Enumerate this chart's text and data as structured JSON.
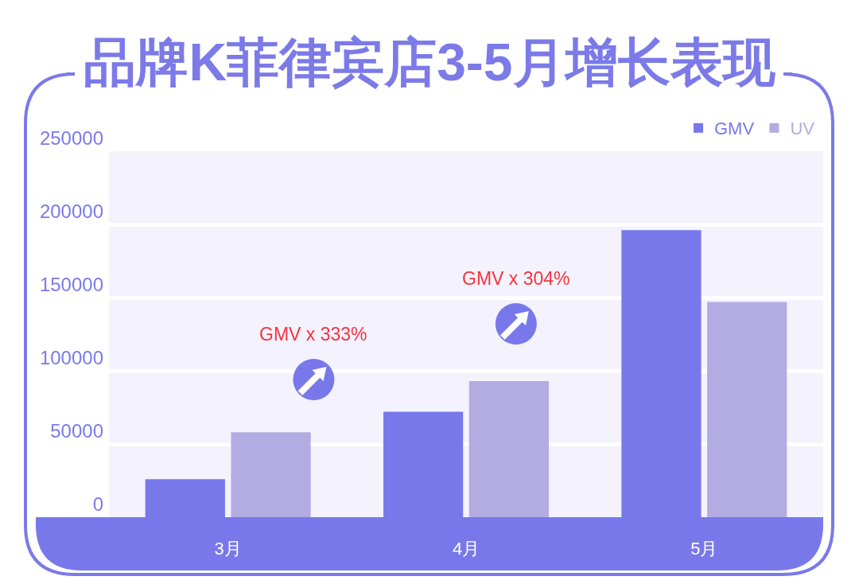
{
  "chart_data": {
    "type": "bar",
    "title": "品牌K菲律宾店3-5月增长表现",
    "categories": [
      "3月",
      "4月",
      "5月"
    ],
    "series": [
      {
        "name": "GMV",
        "color": "#7878ea",
        "values": [
          26000,
          72000,
          196000
        ]
      },
      {
        "name": "UV",
        "color": "#b3ace2",
        "values": [
          58000,
          93000,
          147000
        ]
      }
    ],
    "ylim": [
      0,
      250000
    ],
    "yticks": [
      0,
      50000,
      100000,
      150000,
      200000,
      250000
    ],
    "grid": "y",
    "legend": "top right",
    "annotations": [
      "GMV x 333%",
      "GMV x 304%"
    ]
  }
}
